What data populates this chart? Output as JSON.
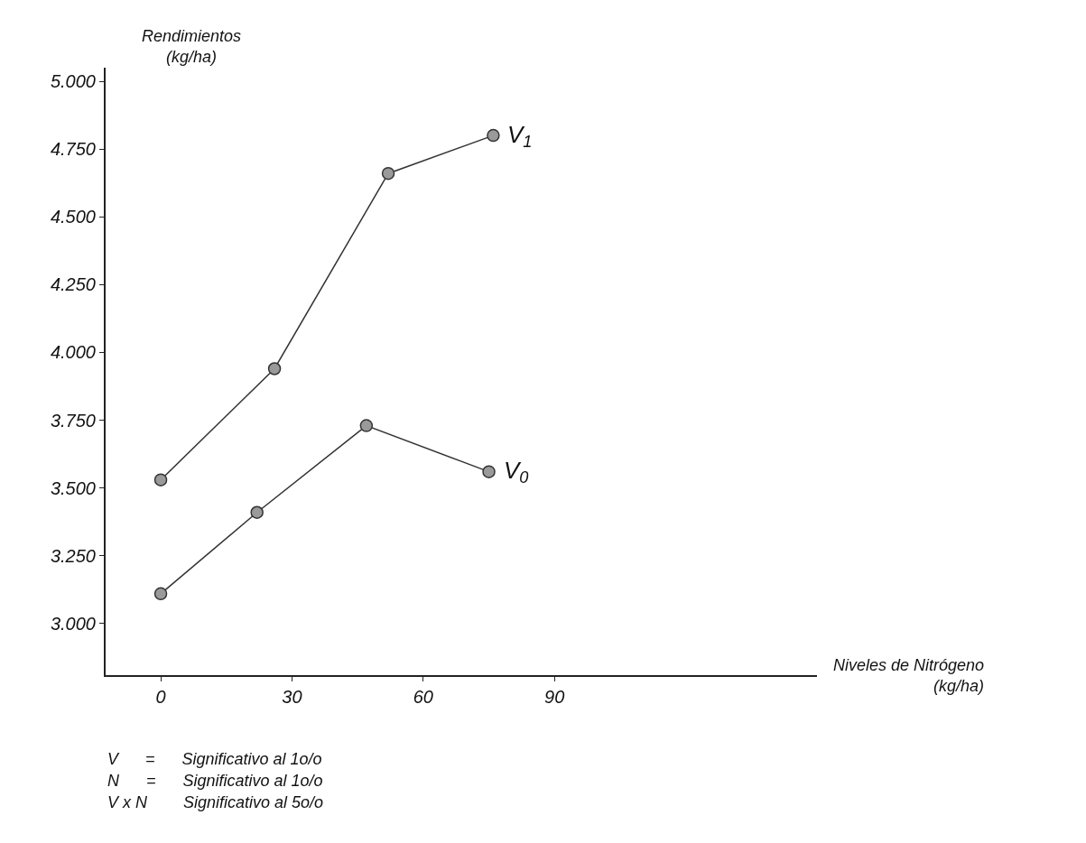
{
  "chart_data": {
    "type": "line",
    "ylabel": "Rendimientos\n(kg/ha)",
    "xlabel": "Niveles de Nitrógeno\n(kg/ha)",
    "series": [
      {
        "name": "V$_{1}$",
        "color": "#333333",
        "x": [
          0,
          26,
          52,
          76
        ],
        "values": [
          3530,
          3940,
          4660,
          4800
        ]
      },
      {
        "name": "V$_{0}$",
        "color": "#333333",
        "x": [
          0,
          22,
          47,
          75
        ],
        "values": [
          3110,
          3410,
          3730,
          3560
        ]
      }
    ],
    "xlim": [
      -12.6,
      150
    ],
    "xticks": [
      0,
      30,
      60,
      90
    ],
    "ylim": [
      2810,
      5050
    ],
    "yticks": [
      {
        "value": 3000,
        "label": "3.000"
      },
      {
        "value": 3250,
        "label": "3.250"
      },
      {
        "value": 3500,
        "label": "3.500"
      },
      {
        "value": 3750,
        "label": "3.750"
      },
      {
        "value": 4000,
        "label": "4.000"
      },
      {
        "value": 4250,
        "label": "4.250"
      },
      {
        "value": 4500,
        "label": "4.500"
      },
      {
        "value": 4750,
        "label": "4.750"
      },
      {
        "value": 5000,
        "label": "5.000"
      }
    ],
    "annotations": [
      "V      =      Significativo al 1o/o",
      "N      =      Significativo al 1o/o",
      "V x N        Significativo al 5o/o"
    ],
    "marker": "circle",
    "line_style": "solid",
    "legend": false
  }
}
